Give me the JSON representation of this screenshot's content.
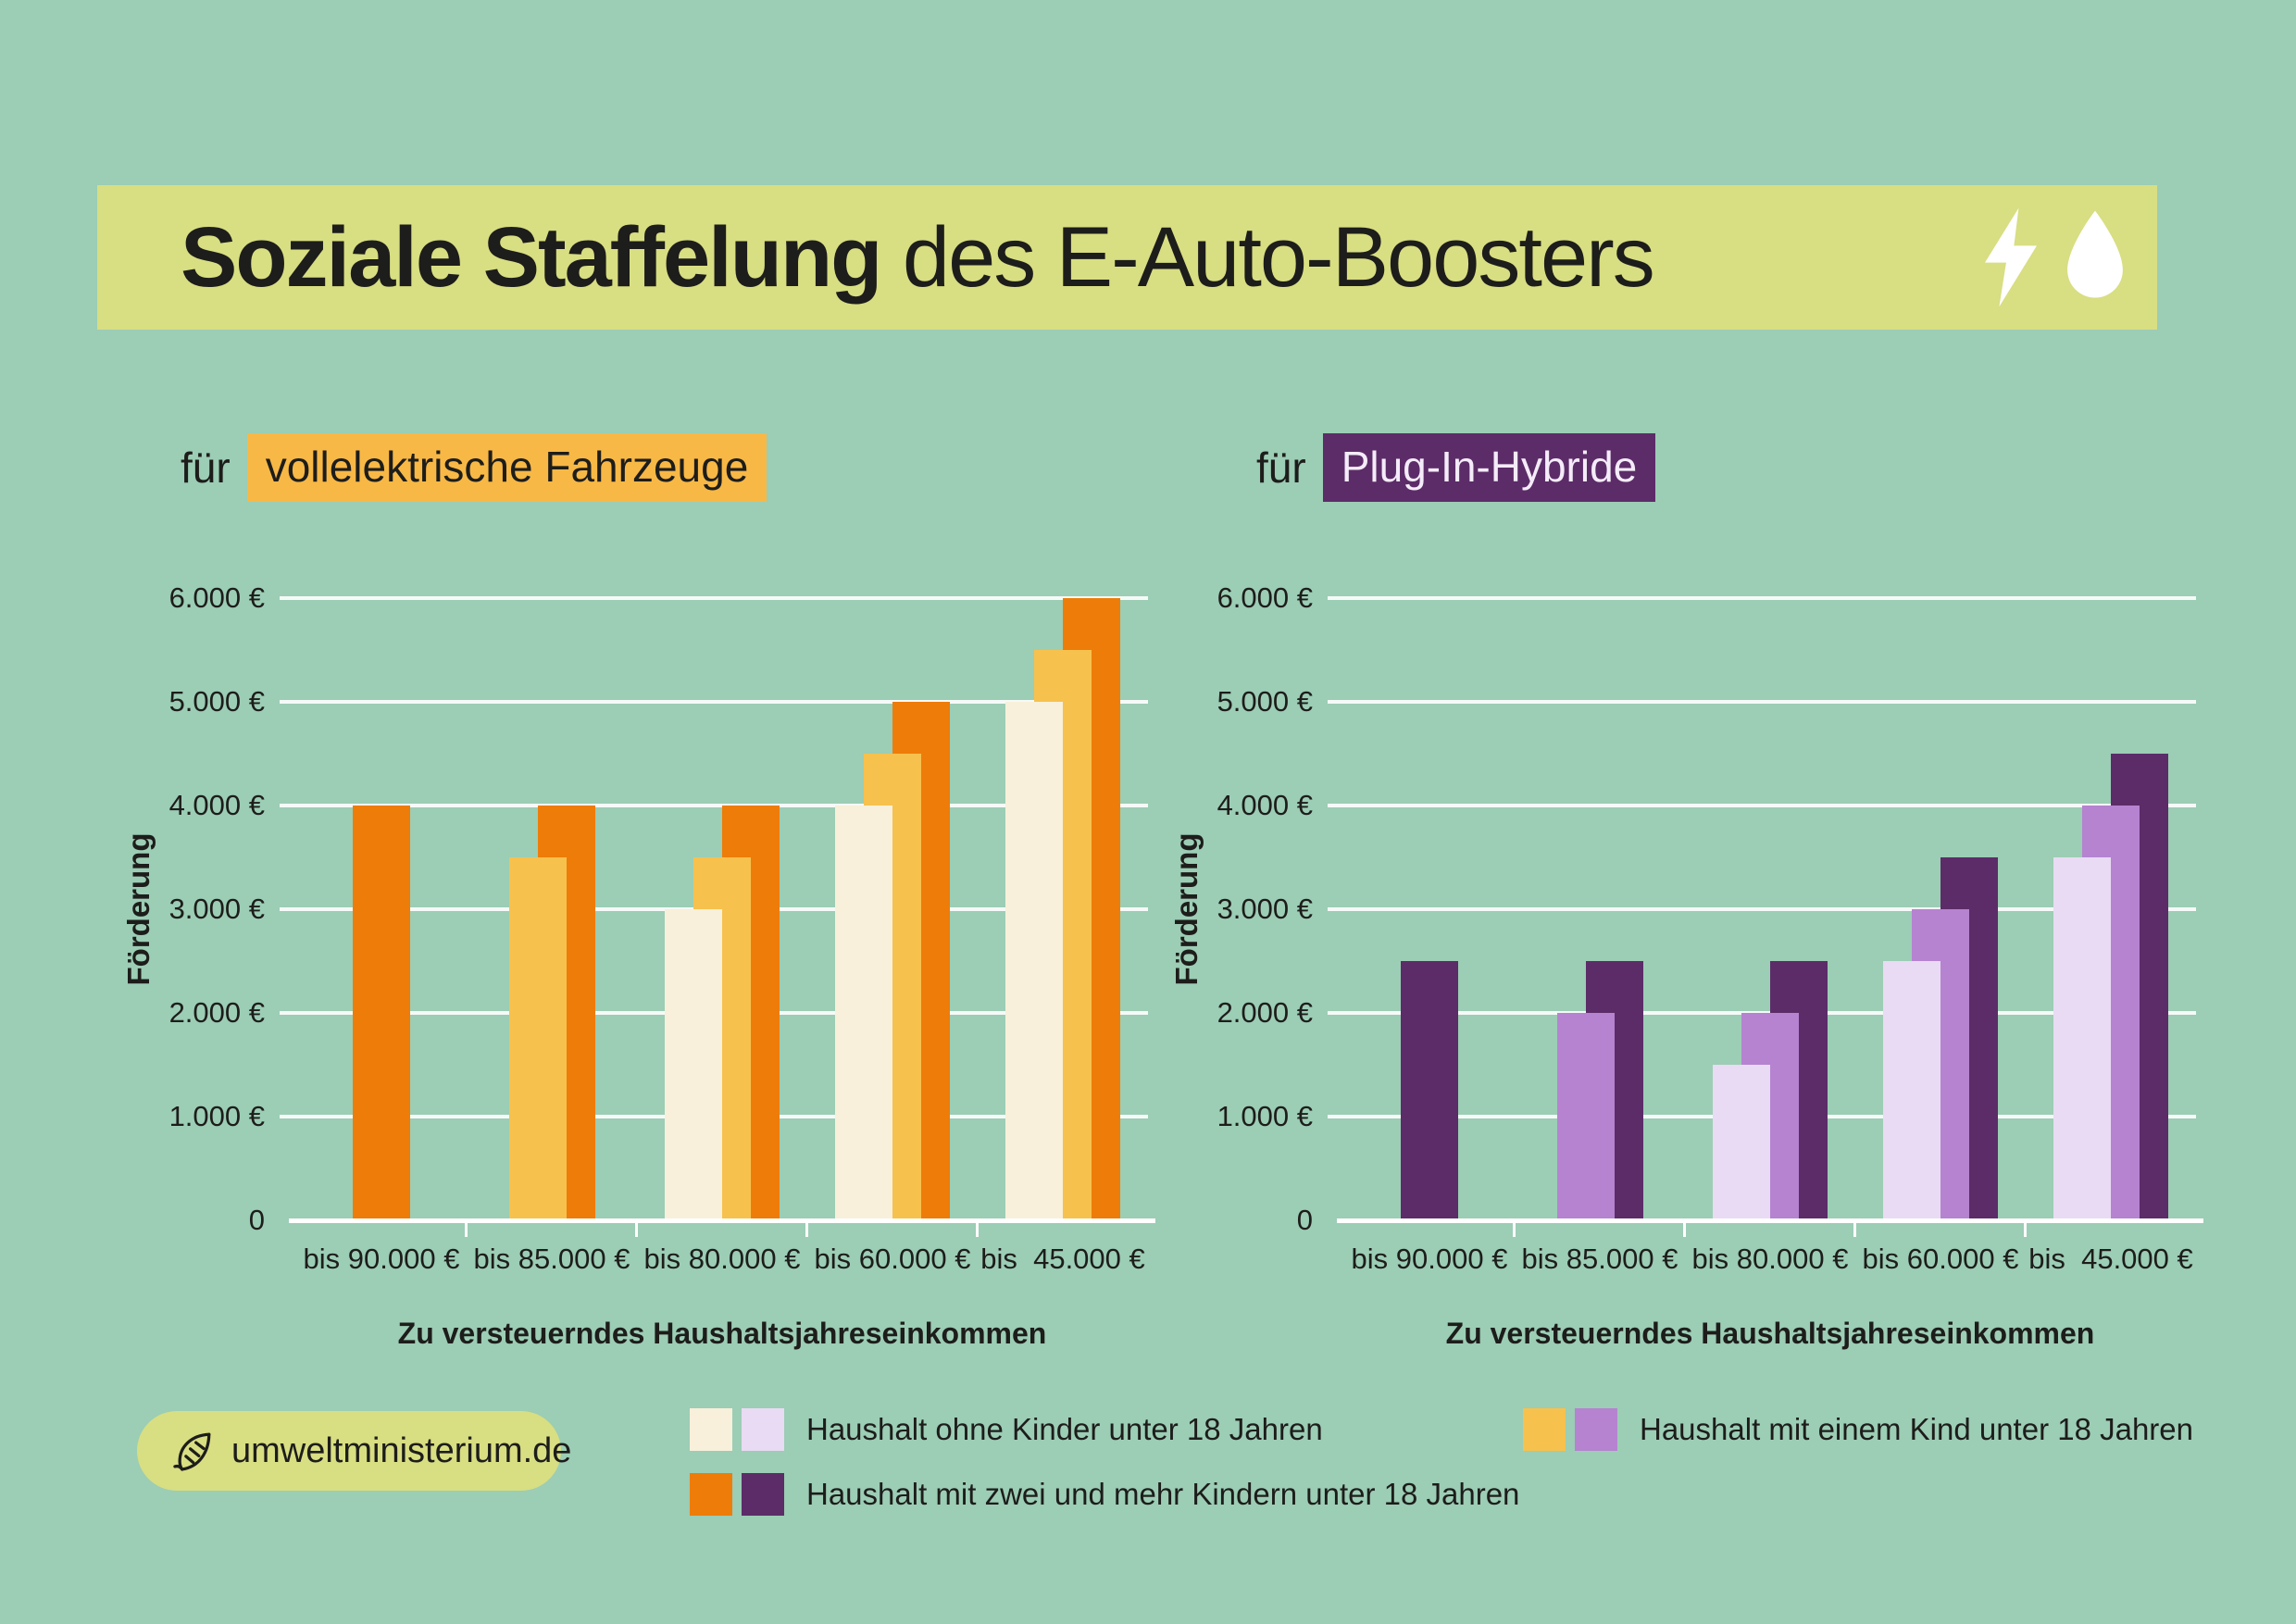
{
  "title": {
    "bold": "Soziale Staffelung",
    "regular": " des E-Auto-Boosters",
    "icons": [
      "lightning-bolt-icon",
      "water-drop-icon"
    ]
  },
  "colors": {
    "background": "#9ccdb5",
    "title_band": "#d8de82",
    "text": "#1d1d1b",
    "gridline": "#ffffff",
    "ev_highlight": "#f8b845",
    "ph_highlight": "#5c2c68",
    "ev_no_children": "#f8f0da",
    "ev_one_child": "#f7c14e",
    "ev_two_plus_children": "#ee7c08",
    "ph_no_children": "#e9dbf3",
    "ph_one_child": "#b583d0",
    "ph_two_plus_children": "#5c2c68"
  },
  "legend": [
    {
      "label": "Haushalt ohne Kinder unter 18 Jahren",
      "ev_color": "#f8f0da",
      "ph_color": "#e9dbf3"
    },
    {
      "label": "Haushalt mit einem Kind unter 18 Jahren",
      "ev_color": "#f7c14e",
      "ph_color": "#b583d0"
    },
    {
      "label": "Haushalt mit zwei und mehr Kindern unter 18 Jahren",
      "ev_color": "#ee7c08",
      "ph_color": "#5c2c68"
    }
  ],
  "footer": {
    "icon": "leaf-icon",
    "site": "umweltministerium.de"
  },
  "chart_data": [
    {
      "type": "bar",
      "title_prefix": "für",
      "title_highlight": "vollelektrische Fahrzeuge",
      "categories": [
        "bis 90.000 €",
        "bis 85.000 €",
        "bis 80.000 €",
        "bis 60.000 €",
        "bis  45.000 €"
      ],
      "series": [
        {
          "name": "Haushalt ohne Kinder unter 18 Jahren",
          "color": "#f8f0da",
          "values": [
            null,
            null,
            3000,
            4000,
            5000
          ]
        },
        {
          "name": "Haushalt mit einem Kind unter 18 Jahren",
          "color": "#f7c14e",
          "values": [
            null,
            3500,
            3500,
            4500,
            5500
          ]
        },
        {
          "name": "Haushalt mit zwei und mehr Kindern unter 18 Jahren",
          "color": "#ee7c08",
          "values": [
            4000,
            4000,
            4000,
            5000,
            6000
          ]
        }
      ],
      "xlabel": "Zu versteuerndes Haushaltsjahreseinkommen",
      "ylabel": "Förderung",
      "ylim": [
        0,
        6000
      ],
      "yticks": [
        0,
        1000,
        2000,
        3000,
        4000,
        5000,
        6000
      ],
      "ytick_labels": [
        "0",
        "1.000 €",
        "2.000 €",
        "3.000 €",
        "4.000 €",
        "5.000 €",
        "6.000 €"
      ],
      "grid": "horizontal-white",
      "legend_position": "bottom"
    },
    {
      "type": "bar",
      "title_prefix": "für",
      "title_highlight": "Plug-In-Hybride",
      "categories": [
        "bis 90.000 €",
        "bis 85.000 €",
        "bis 80.000 €",
        "bis 60.000 €",
        "bis  45.000 €"
      ],
      "series": [
        {
          "name": "Haushalt ohne Kinder unter 18 Jahren",
          "color": "#e9dbf3",
          "values": [
            null,
            null,
            1500,
            2500,
            3500
          ]
        },
        {
          "name": "Haushalt mit einem Kind unter 18 Jahren",
          "color": "#b583d0",
          "values": [
            null,
            2000,
            2000,
            3000,
            4000
          ]
        },
        {
          "name": "Haushalt mit zwei und mehr Kindern unter 18 Jahren",
          "color": "#5c2c68",
          "values": [
            2500,
            2500,
            2500,
            3500,
            4500
          ]
        }
      ],
      "xlabel": "Zu versteuerndes Haushaltsjahreseinkommen",
      "ylabel": "Förderung",
      "ylim": [
        0,
        6000
      ],
      "yticks": [
        0,
        1000,
        2000,
        3000,
        4000,
        5000,
        6000
      ],
      "ytick_labels": [
        "0",
        "1.000 €",
        "2.000 €",
        "3.000 €",
        "4.000 €",
        "5.000 €",
        "6.000 €"
      ],
      "grid": "horizontal-white",
      "legend_position": "bottom"
    }
  ]
}
